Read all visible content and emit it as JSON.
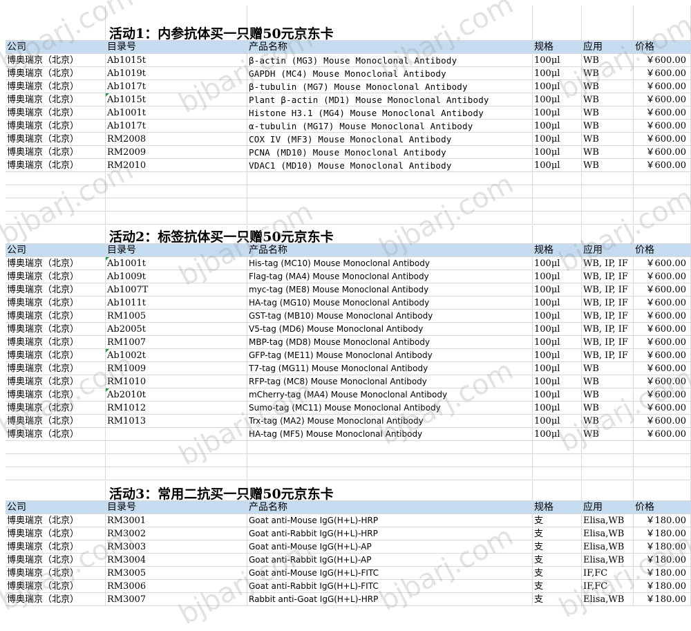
{
  "watermark": "bjbarj.com",
  "colors": {
    "header_bg": "#c5dcf0",
    "grid": "#d9d9d9",
    "comment_tick": "#1e9a3c"
  },
  "headers": {
    "company": "公司",
    "catalog": "目录号",
    "product": "产品名称",
    "spec": "规格",
    "application": "应用",
    "price": "价格"
  },
  "sections": [
    {
      "title": "活动1：内参抗体买一只赠50元京东卡",
      "rows": [
        {
          "company": "博奥瑞京（北京）",
          "catalog": "Ab1015t",
          "product": "β-actin (MG3) Mouse Monoclonal Antibody",
          "spec": "100μl",
          "application": "WB",
          "price": "￥600.00"
        },
        {
          "company": "博奥瑞京（北京）",
          "catalog": "Ab1019t",
          "product": "GAPDH (MC4) Mouse Monoclonal Antibody",
          "spec": "100μl",
          "application": "WB",
          "price": "￥600.00"
        },
        {
          "company": "博奥瑞京（北京）",
          "catalog": "Ab1017t",
          "product": "β-tubulin (MG7) Mouse Monoclonal Antibody",
          "spec": "100μl",
          "application": "WB",
          "price": "￥600.00"
        },
        {
          "company": "博奥瑞京（北京）",
          "catalog": "Ab1015t",
          "product": "Plant β-actin (MD1) Mouse Monoclonal Antibody",
          "spec": "100μl",
          "application": "WB",
          "price": "￥600.00"
        },
        {
          "company": "博奥瑞京（北京）",
          "catalog": "Ab1001t",
          "product": "Histone H3.1 (MG4) Mouse Monoclonal Antibody",
          "spec": "100μl",
          "application": "WB",
          "price": "￥600.00"
        },
        {
          "company": "博奥瑞京（北京）",
          "catalog": "Ab1017t",
          "product": "α-tubulin (MG17) Mouse Monoclonal Antibody",
          "spec": "100μl",
          "application": "WB",
          "price": "￥600.00"
        },
        {
          "company": "博奥瑞京（北京）",
          "catalog": "RM2008",
          "product": "COX IV (MF3) Mouse Monoclonal Antibody",
          "spec": "100μl",
          "application": "WB",
          "price": "￥600.00"
        },
        {
          "company": "博奥瑞京（北京）",
          "catalog": "RM2009",
          "product": "PCNA (MD10) Mouse Monoclonal Antibody",
          "spec": "100μl",
          "application": "WB",
          "price": "￥600.00"
        },
        {
          "company": "博奥瑞京（北京）",
          "catalog": "RM2010",
          "product": "VDAC1 (MD10) Mouse Monoclonal Antibody",
          "spec": "100μl",
          "application": "WB",
          "price": "￥600.00"
        }
      ]
    },
    {
      "title": "活动2：标签抗体买一只赠50元京东卡",
      "rows": [
        {
          "company": "博奥瑞京（北京）",
          "catalog": "Ab1001t",
          "product": "His-tag (MC10) Mouse Monoclonal Antibody",
          "spec": "100μl",
          "application": "WB, IP, IF",
          "price": "￥600.00"
        },
        {
          "company": "博奥瑞京（北京）",
          "catalog": "Ab1009t",
          "product": "Flag-tag (MA4) Mouse Monoclonal Antibody",
          "spec": "100μl",
          "application": "WB, IP, IF",
          "price": "￥600.00"
        },
        {
          "company": "博奥瑞京（北京）",
          "catalog": "Ab1007T",
          "product": "myc-tag (ME8) Mouse Monoclonal Antibody",
          "spec": "100μl",
          "application": "WB, IP, IF",
          "price": "￥600.00"
        },
        {
          "company": "博奥瑞京（北京）",
          "catalog": "Ab1011t",
          "product": "HA-tag (MG10) Mouse Monoclonal Antibody",
          "spec": "100μl",
          "application": "WB, IP, IF",
          "price": "￥600.00"
        },
        {
          "company": "博奥瑞京（北京）",
          "catalog": "RM1005",
          "product": "GST-tag (MB10) Mouse Monoclonal Antibody",
          "spec": "100μl",
          "application": "WB, IP, IF",
          "price": "￥600.00"
        },
        {
          "company": "博奥瑞京（北京）",
          "catalog": "Ab2005t",
          "product": "V5-tag (MD6) Mouse Monoclonal Antibody",
          "spec": "100μl",
          "application": "WB, IP, IF",
          "price": "￥600.00"
        },
        {
          "company": "博奥瑞京（北京）",
          "catalog": "RM1007",
          "product": "MBP-tag (MD8) Mouse Monoclonal Antibody",
          "spec": "100μl",
          "application": "WB, IP, IF",
          "price": "￥600.00"
        },
        {
          "company": "博奥瑞京（北京）",
          "catalog": "Ab1002t",
          "product": "GFP-tag (ME11) Mouse Monoclonal Antibody",
          "spec": "100μl",
          "application": "WB, IP, IF",
          "price": "￥600.00"
        },
        {
          "company": "博奥瑞京（北京）",
          "catalog": "RM1009",
          "product": "T7-tag (MG11) Mouse Monoclonal Antibody",
          "spec": "100μl",
          "application": "WB",
          "price": "￥600.00"
        },
        {
          "company": "博奥瑞京（北京）",
          "catalog": "RM1010",
          "product": "RFP-tag (MC8) Mouse Monoclonal Antibody",
          "spec": "100μl",
          "application": "WB",
          "price": "￥600.00"
        },
        {
          "company": "博奥瑞京（北京）",
          "catalog": "Ab2010t",
          "product": "mCherry-tag (MA4) Mouse Monoclonal Antibody",
          "spec": "100μl",
          "application": "WB",
          "price": "￥600.00"
        },
        {
          "company": "博奥瑞京（北京）",
          "catalog": "RM1012",
          "product": "Sumo-tag (MC11) Mouse Monoclonal Antibody",
          "spec": "100μl",
          "application": "WB",
          "price": "￥600.00"
        },
        {
          "company": "博奥瑞京（北京）",
          "catalog": "RM1013",
          "product": "Trx-tag (MA2) Mouse Monoclonal Antibody",
          "spec": "100μl",
          "application": "WB",
          "price": "￥600.00"
        },
        {
          "company": "博奥瑞京（北京）",
          "catalog": "",
          "product": "HA-tag (MF5) Mouse Monoclonal Antibody",
          "spec": "100μl",
          "application": "WB",
          "price": "￥600.00"
        }
      ]
    },
    {
      "title": "活动3：常用二抗买一只赠50元京东卡",
      "rows": [
        {
          "company": "博奥瑞京（北京）",
          "catalog": "RM3001",
          "product": "Goat anti-Mouse IgG(H+L)-HRP",
          "spec": "支",
          "application": "Elisa,WB",
          "price": "￥180.00"
        },
        {
          "company": "博奥瑞京（北京）",
          "catalog": "RM3002",
          "product": "Goat anti-Rabbit IgG(H+L)-HRP",
          "spec": "支",
          "application": "Elisa,WB",
          "price": "￥180.00"
        },
        {
          "company": "博奥瑞京（北京）",
          "catalog": "RM3003",
          "product": "Goat anti-Mouse IgG(H+L)-AP",
          "spec": "支",
          "application": "Elisa,WB",
          "price": "￥180.00"
        },
        {
          "company": "博奥瑞京（北京）",
          "catalog": "RM3004",
          "product": "Goat anti-Rabbit IgG(H+L)-AP",
          "spec": "支",
          "application": "Elisa,WB",
          "price": "￥180.00"
        },
        {
          "company": "博奥瑞京（北京）",
          "catalog": "RM3005",
          "product": "Goat anti-Mouse IgG(H+L)-FITC",
          "spec": "支",
          "application": "IF,FC",
          "price": "￥180.00"
        },
        {
          "company": "博奥瑞京（北京）",
          "catalog": "RM3006",
          "product": "Goat anti-Rabbit IgG(H+L)-FITC",
          "spec": "支",
          "application": "IF,FC",
          "price": "￥180.00"
        },
        {
          "company": "博奥瑞京（北京）",
          "catalog": "RM3007",
          "product": "Rabbit anti-Goat IgG(H+L)-HRP",
          "spec": "支",
          "application": "Elisa,WB",
          "price": "￥180.00"
        }
      ]
    }
  ]
}
